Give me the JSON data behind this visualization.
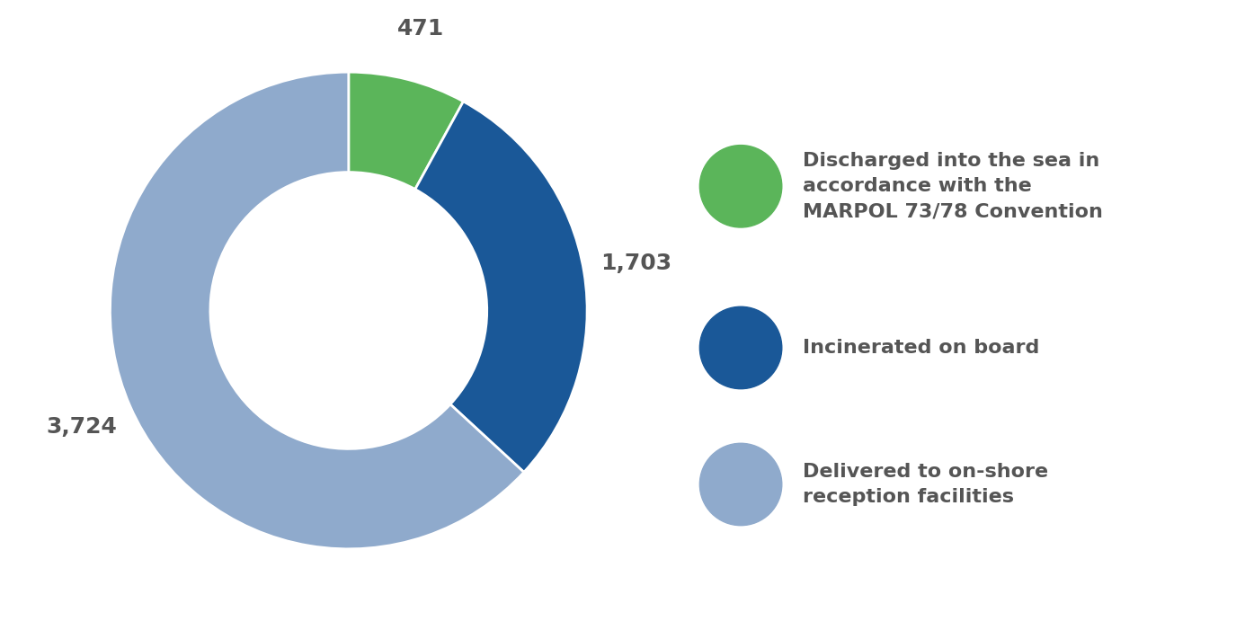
{
  "values": [
    471,
    1703,
    3724
  ],
  "colors": [
    "#5bb55a",
    "#1a5898",
    "#8faacc"
  ],
  "labels": [
    "471",
    "1,703",
    "3,724"
  ],
  "legend_labels": [
    "Discharged into the sea in\naccordance with the\nMARPOL 73/78 Convention",
    "Incinerated on board",
    "Delivered to on-shore\nreception facilities"
  ],
  "text_color": "#555555",
  "background_color": "#ffffff",
  "label_fontsize": 18,
  "legend_fontsize": 16,
  "donut_width": 0.42
}
